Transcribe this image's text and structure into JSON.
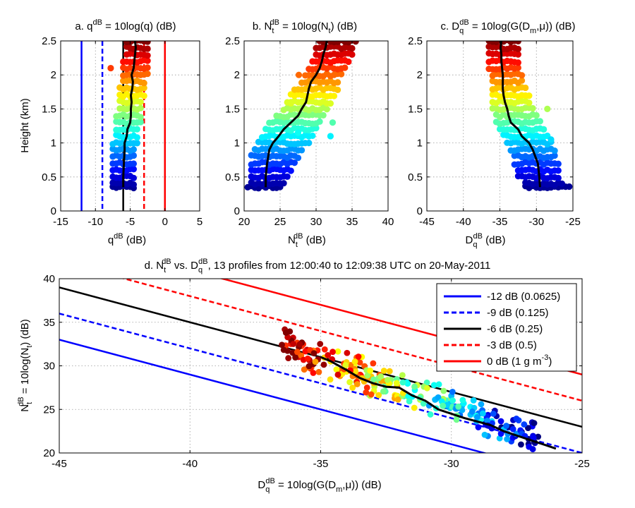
{
  "panels": [
    {
      "id": "a",
      "title_main": "a. q",
      "title_sup": "dB",
      "title_rest": " = 10log(q) (dB)",
      "xlabel_main": "q",
      "xlabel_sup": "dB",
      "xlabel_rest": " (dB)",
      "ylabel": "Height (km)"
    },
    {
      "id": "b",
      "title_main": "b. N",
      "title_sub": "t",
      "title_sup": "dB",
      "title_rest": " = 10log(N",
      "title_sub2": "t",
      "title_end": ") (dB)",
      "xlabel_main": "N",
      "xlabel_sub": "t",
      "xlabel_sup": "dB",
      "xlabel_rest": " (dB)"
    },
    {
      "id": "c",
      "title_main": "c. D",
      "title_sub": "q",
      "title_sup": "dB",
      "title_rest": " = 10log(G(D",
      "title_sub2": "m",
      "title_end": ",μ)) (dB)",
      "xlabel_main": "D",
      "xlabel_sub": "q",
      "xlabel_sup": "dB",
      "xlabel_rest": " (dB)"
    },
    {
      "id": "d",
      "title_main": "d. N",
      "title_sub": "t",
      "title_sup": "dB",
      "title_mid": " vs. D",
      "title_sub2": "q",
      "title_sup2": "dB",
      "title_rest": ", 13 profiles from 12:00:40 to 12:09:38 UTC on 20-May-2011",
      "xlabel_main": "D",
      "xlabel_sub": "q",
      "xlabel_sup": "dB",
      "xlabel_rest": " = 10log(G(D",
      "xlabel_sub2": "m",
      "xlabel_end": ",μ)) (dB)",
      "ylabel_main": "N",
      "ylabel_sub": "t",
      "ylabel_sup": "dB",
      "ylabel_rest": " = 10log(N",
      "ylabel_sub2": "t",
      "ylabel_end": ") (dB)"
    }
  ],
  "legend": [
    {
      "text": "-12 dB (0.0625)",
      "color": "#0000ff",
      "dash": false
    },
    {
      "text": "-9 dB (0.125)",
      "color": "#0000ff",
      "dash": true
    },
    {
      "text": "-6 dB (0.25)",
      "color": "#000000",
      "dash": false
    },
    {
      "text": "-3 dB (0.5)",
      "color": "#ff0000",
      "dash": true
    },
    {
      "text": "0 dB (1 g m",
      "sup": "-3",
      "end": ")",
      "color": "#ff0000",
      "dash": false
    }
  ],
  "chart_data": [
    {
      "type": "scatter",
      "panel": "a",
      "xlim": [
        -15,
        5
      ],
      "ylim": [
        0,
        2.5
      ],
      "xticks": [
        -15,
        -10,
        -5,
        0,
        5
      ],
      "yticks": [
        0,
        0.5,
        1,
        1.5,
        2,
        2.5
      ],
      "grid": true,
      "reference_lines_x": [
        {
          "x": -12,
          "color": "#0000ff",
          "dash": false
        },
        {
          "x": -9,
          "color": "#0000ff",
          "dash": true
        },
        {
          "x": -6,
          "color": "#000000",
          "dash": false
        },
        {
          "x": -3,
          "color": "#ff0000",
          "dash": true
        },
        {
          "x": 0,
          "color": "#ff0000",
          "dash": false
        }
      ],
      "colormap": "jet",
      "color_by": "height",
      "points": {
        "heights": [
          0.35,
          0.4,
          0.5,
          0.6,
          0.7,
          0.8,
          0.9,
          1.0,
          1.1,
          1.2,
          1.3,
          1.4,
          1.5,
          1.6,
          1.7,
          1.8,
          1.9,
          2.0,
          2.1,
          2.2,
          2.3,
          2.4,
          2.5
        ],
        "min": [
          -7.5,
          -7.5,
          -7.5,
          -7.5,
          -7.5,
          -7.5,
          -7.5,
          -7.5,
          -7.0,
          -7.0,
          -7.0,
          -7.0,
          -6.5,
          -6.5,
          -6.5,
          -6.5,
          -6.0,
          -6.0,
          -6.0,
          -6.0,
          -5.5,
          -5.5,
          -5.5
        ],
        "max": [
          -4.5,
          -4.5,
          -4.5,
          -4.5,
          -4.5,
          -4.5,
          -4.5,
          -4.0,
          -4.0,
          -4.0,
          -3.5,
          -3.5,
          -3.5,
          -3.5,
          -3.0,
          -3.0,
          -3.0,
          -2.5,
          -2.5,
          -2.5,
          -2.5,
          -2.5,
          -2.5
        ],
        "outliers": [
          {
            "x": -7.8,
            "y": 2.1
          }
        ]
      },
      "median_line": {
        "y": [
          0.35,
          0.5,
          0.7,
          0.9,
          1.0,
          1.1,
          1.2,
          1.3,
          1.4,
          1.5,
          1.6,
          1.7,
          1.8,
          1.9,
          2.0,
          2.1,
          2.2,
          2.3,
          2.4,
          2.5
        ],
        "x": [
          -6.0,
          -6.0,
          -5.9,
          -5.8,
          -5.8,
          -5.5,
          -5.4,
          -5.0,
          -4.9,
          -4.9,
          -4.8,
          -4.9,
          -4.7,
          -4.6,
          -4.8,
          -4.5,
          -4.4,
          -4.3,
          -4.2,
          -4.3
        ]
      }
    },
    {
      "type": "scatter",
      "panel": "b",
      "xlim": [
        20,
        40
      ],
      "ylim": [
        0,
        2.5
      ],
      "xticks": [
        20,
        25,
        30,
        35,
        40
      ],
      "yticks": [
        0,
        0.5,
        1,
        1.5,
        2,
        2.5
      ],
      "grid": true,
      "colormap": "jet",
      "color_by": "height",
      "points": {
        "heights": [
          0.35,
          0.4,
          0.5,
          0.6,
          0.7,
          0.8,
          0.9,
          1.0,
          1.1,
          1.2,
          1.3,
          1.4,
          1.5,
          1.6,
          1.7,
          1.8,
          1.9,
          2.0,
          2.1,
          2.2,
          2.3,
          2.4,
          2.5
        ],
        "min": [
          20.5,
          21.0,
          21.0,
          21.0,
          21.0,
          21.0,
          21.5,
          22.0,
          22.5,
          23.0,
          23.5,
          24.5,
          25.5,
          26.0,
          26.5,
          27.0,
          28.0,
          28.5,
          29.0,
          29.5,
          30.0,
          30.0,
          30.5
        ],
        "max": [
          25.0,
          25.5,
          26.0,
          26.5,
          27.0,
          27.5,
          28.0,
          29.0,
          29.5,
          30.0,
          30.5,
          31.0,
          31.5,
          32.0,
          32.5,
          33.0,
          33.0,
          33.5,
          34.0,
          34.5,
          35.0,
          35.0,
          35.5
        ],
        "outliers": [
          {
            "x": 27.6,
            "y": 2.0
          },
          {
            "x": 27.5,
            "y": 1.15
          },
          {
            "x": 32.0,
            "y": 1.1
          },
          {
            "x": 32.3,
            "y": 1.3
          },
          {
            "x": 26.5,
            "y": 1.6
          }
        ]
      },
      "median_line": {
        "y": [
          0.35,
          0.5,
          0.7,
          0.9,
          1.0,
          1.1,
          1.2,
          1.3,
          1.4,
          1.5,
          1.6,
          1.7,
          1.8,
          1.9,
          2.0,
          2.1,
          2.2,
          2.3,
          2.4,
          2.5
        ],
        "x": [
          23.0,
          23.0,
          23.2,
          23.5,
          24.0,
          24.8,
          25.5,
          26.5,
          27.5,
          28.0,
          28.6,
          28.8,
          29.0,
          29.3,
          30.0,
          30.5,
          30.8,
          31.0,
          31.3,
          31.5
        ]
      }
    },
    {
      "type": "scatter",
      "panel": "c",
      "xlim": [
        -45,
        -25
      ],
      "ylim": [
        0,
        2.5
      ],
      "xticks": [
        -45,
        -40,
        -35,
        -30,
        -25
      ],
      "yticks": [
        0,
        0.5,
        1,
        1.5,
        2,
        2.5
      ],
      "grid": true,
      "colormap": "jet",
      "color_by": "height",
      "points": {
        "heights": [
          0.35,
          0.4,
          0.5,
          0.6,
          0.7,
          0.8,
          0.9,
          1.0,
          1.1,
          1.2,
          1.3,
          1.4,
          1.5,
          1.6,
          1.7,
          1.8,
          1.9,
          2.0,
          2.1,
          2.2,
          2.3,
          2.4,
          2.5
        ],
        "min": [
          -31.5,
          -31.5,
          -32.5,
          -32.5,
          -33.0,
          -33.0,
          -33.5,
          -34.0,
          -34.5,
          -35.0,
          -35.5,
          -35.5,
          -36.0,
          -36.0,
          -36.0,
          -36.0,
          -36.0,
          -36.0,
          -36.5,
          -36.5,
          -36.5,
          -36.5,
          -36.5
        ],
        "max": [
          -25.5,
          -26.5,
          -27.0,
          -27.0,
          -27.0,
          -27.5,
          -27.5,
          -28.0,
          -28.5,
          -29.0,
          -29.5,
          -30.0,
          -30.5,
          -31.0,
          -31.0,
          -31.5,
          -32.0,
          -32.0,
          -32.5,
          -32.5,
          -32.5,
          -32.5,
          -32.5
        ],
        "outliers": [
          {
            "x": -28.5,
            "y": 1.5
          },
          {
            "x": -29.0,
            "y": 1.2
          },
          {
            "x": -28.0,
            "y": 1.05
          }
        ]
      },
      "median_line": {
        "y": [
          0.35,
          0.5,
          0.7,
          0.9,
          1.0,
          1.1,
          1.2,
          1.3,
          1.4,
          1.5,
          1.6,
          1.7,
          1.8,
          1.9,
          2.0,
          2.1,
          2.2,
          2.3,
          2.4,
          2.5
        ],
        "x": [
          -29.5,
          -29.6,
          -29.8,
          -30.5,
          -31.0,
          -32.0,
          -32.5,
          -33.5,
          -33.8,
          -34.0,
          -34.3,
          -34.5,
          -34.6,
          -34.6,
          -34.6,
          -34.7,
          -34.8,
          -34.8,
          -34.9,
          -34.8
        ]
      }
    },
    {
      "type": "scatter",
      "panel": "d",
      "xlim": [
        -45,
        -25
      ],
      "ylim": [
        20,
        40
      ],
      "xticks": [
        -45,
        -40,
        -35,
        -30,
        -25
      ],
      "yticks": [
        20,
        25,
        30,
        35,
        40
      ],
      "grid": true,
      "reference_lines": [
        {
          "name": "-12 dB (0.0625)",
          "offset_dB": -12,
          "color": "#0000ff",
          "dash": false
        },
        {
          "name": "-9 dB (0.125)",
          "offset_dB": -9,
          "color": "#0000ff",
          "dash": true
        },
        {
          "name": "-6 dB (0.25)",
          "offset_dB": -6,
          "color": "#000000",
          "dash": false
        },
        {
          "name": "-3 dB (0.5)",
          "offset_dB": -3,
          "color": "#ff0000",
          "dash": true
        },
        {
          "name": "0 dB (1 g m-3)",
          "offset_dB": 0,
          "color": "#ff0000",
          "dash": false
        }
      ],
      "reference_line_anchor": {
        "x": -45,
        "y_at_0dB": 45.0,
        "slope": -0.8
      },
      "colormap": "jet",
      "color_by": "height",
      "cloud": {
        "x_range": [
          -36.5,
          -26.5
        ],
        "center_y_at_x_min": 32.5,
        "center_y_at_x_max": 21.5,
        "spread": 1.6
      },
      "median_line": {
        "x": [
          -35.0,
          -34.6,
          -34.0,
          -33.5,
          -33.0,
          -32.5,
          -32.0,
          -31.5,
          -31.0,
          -30.5,
          -30.0,
          -29.5,
          -29.0,
          -28.5,
          -28.0,
          -27.5,
          -27.0,
          -26.5,
          -26.0
        ],
        "y": [
          31.0,
          30.5,
          29.5,
          28.6,
          28.0,
          27.6,
          27.5,
          26.6,
          26.0,
          25.0,
          24.5,
          24.0,
          23.6,
          23.2,
          22.5,
          22.0,
          21.5,
          21.0,
          20.5
        ]
      }
    }
  ]
}
